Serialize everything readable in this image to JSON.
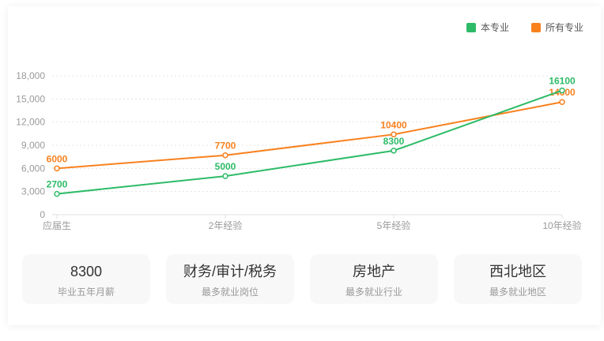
{
  "chart_data": {
    "type": "line",
    "categories": [
      "应届生",
      "2年经验",
      "5年经验",
      "10年经验"
    ],
    "series": [
      {
        "name": "本专业",
        "color": "#2dbb67",
        "values": [
          2700,
          5000,
          8300,
          16100
        ]
      },
      {
        "name": "所有专业",
        "color": "#f8811e",
        "values": [
          6000,
          7700,
          10400,
          14600
        ]
      }
    ],
    "ylim": [
      0,
      18000
    ],
    "ytick_step": 3000,
    "ytick_labels": [
      "0",
      "3,000",
      "6,000",
      "9,000",
      "12,000",
      "15,000",
      "18,000"
    ],
    "legend_position": "top-right",
    "grid": "horizontal-dotted",
    "style": {
      "axis_text_color": "#9a9a9a",
      "grid_line_color": "#e4e4e4",
      "axis_line_color": "#e0e0e0",
      "marker_fill": "#ffffff"
    }
  },
  "cards": [
    {
      "value": "8300",
      "label": "毕业五年月薪"
    },
    {
      "value": "财务/审计/税务",
      "label": "最多就业岗位"
    },
    {
      "value": "房地产",
      "label": "最多就业行业"
    },
    {
      "value": "西北地区",
      "label": "最多就业地区"
    }
  ]
}
